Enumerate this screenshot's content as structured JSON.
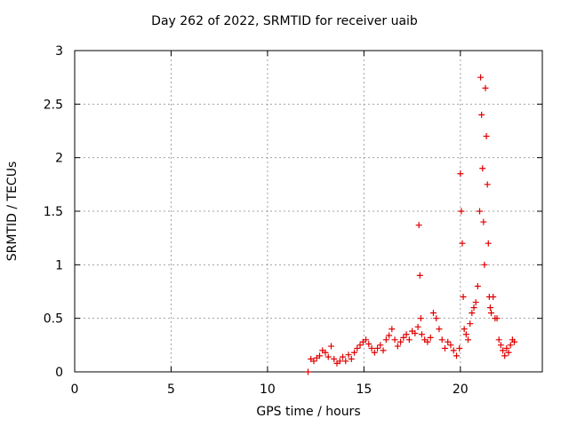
{
  "chart_data": {
    "type": "scatter",
    "title": "Day 262 of 2022, SRMTID for receiver uaib",
    "xlabel": "GPS time / hours",
    "ylabel": "SRMTID / TECUs",
    "xlim": [
      0,
      24.25
    ],
    "ylim": [
      0,
      3
    ],
    "xticks": [
      0,
      5,
      10,
      15,
      20
    ],
    "yticks": [
      0,
      0.5,
      1,
      1.5,
      2,
      2.5,
      3
    ],
    "ytick_labels": [
      "0",
      "0.5",
      "1",
      "1.5",
      "2",
      "2.5",
      "3"
    ],
    "grid": true,
    "marker": "+",
    "color": "#e00000",
    "series": [
      {
        "name": "uaib",
        "x": [
          12.1,
          12.25,
          12.4,
          12.55,
          12.7,
          12.85,
          13.0,
          13.15,
          13.3,
          13.45,
          13.6,
          13.75,
          13.9,
          14.05,
          14.2,
          14.35,
          14.5,
          14.65,
          14.8,
          14.95,
          15.1,
          15.25,
          15.4,
          15.55,
          15.7,
          15.85,
          16.0,
          16.15,
          16.3,
          16.45,
          16.6,
          16.75,
          16.9,
          17.05,
          17.2,
          17.35,
          17.5,
          17.65,
          17.8,
          17.85,
          17.9,
          17.95,
          18.0,
          18.15,
          18.3,
          18.45,
          18.6,
          18.75,
          18.9,
          19.05,
          19.2,
          19.35,
          19.5,
          19.65,
          19.8,
          19.95,
          20.0,
          20.05,
          20.1,
          20.15,
          20.2,
          20.3,
          20.4,
          20.5,
          20.6,
          20.7,
          20.8,
          20.9,
          21.0,
          21.05,
          21.1,
          21.15,
          21.2,
          21.25,
          21.3,
          21.35,
          21.4,
          21.45,
          21.5,
          21.55,
          21.6,
          21.7,
          21.8,
          21.9,
          22.0,
          22.1,
          22.2,
          22.3,
          22.4,
          22.5,
          22.6,
          22.7,
          22.8
        ],
        "y": [
          0.0,
          0.12,
          0.1,
          0.13,
          0.15,
          0.2,
          0.18,
          0.14,
          0.24,
          0.12,
          0.08,
          0.1,
          0.14,
          0.1,
          0.16,
          0.12,
          0.18,
          0.22,
          0.25,
          0.28,
          0.3,
          0.26,
          0.22,
          0.18,
          0.22,
          0.25,
          0.2,
          0.3,
          0.34,
          0.4,
          0.3,
          0.24,
          0.28,
          0.32,
          0.35,
          0.3,
          0.38,
          0.36,
          0.42,
          1.37,
          0.9,
          0.5,
          0.35,
          0.3,
          0.28,
          0.32,
          0.55,
          0.5,
          0.4,
          0.3,
          0.22,
          0.28,
          0.25,
          0.2,
          0.15,
          0.22,
          1.85,
          1.5,
          1.2,
          0.7,
          0.4,
          0.35,
          0.3,
          0.45,
          0.55,
          0.6,
          0.65,
          0.8,
          1.5,
          2.75,
          2.4,
          1.9,
          1.4,
          1.0,
          2.65,
          2.2,
          1.75,
          1.2,
          0.7,
          0.6,
          0.55,
          0.7,
          0.5,
          0.5,
          0.3,
          0.25,
          0.2,
          0.15,
          0.22,
          0.18,
          0.25,
          0.3,
          0.28
        ]
      }
    ]
  }
}
